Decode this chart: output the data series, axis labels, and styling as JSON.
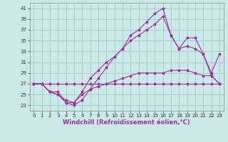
{
  "xlabel": "Windchill (Refroidissement éolien,°C)",
  "xlim": [
    -0.5,
    23.5
  ],
  "ylim": [
    22,
    42
  ],
  "yticks": [
    23,
    25,
    27,
    29,
    31,
    33,
    35,
    37,
    39,
    41
  ],
  "xticks": [
    0,
    1,
    2,
    3,
    4,
    5,
    6,
    7,
    8,
    9,
    10,
    11,
    12,
    13,
    14,
    15,
    16,
    17,
    18,
    19,
    20,
    21,
    22,
    23
  ],
  "bg_color": "#cce9e9",
  "grid_color": "#aacccc",
  "line_color": "#993399",
  "lines": [
    {
      "x": [
        0,
        1,
        2,
        3,
        4,
        5,
        6,
        7,
        8,
        9,
        10,
        11,
        12,
        13,
        14,
        15,
        16,
        17,
        18,
        19,
        20,
        21,
        22,
        23
      ],
      "y": [
        27,
        27,
        27,
        27,
        27,
        27,
        27,
        27,
        27,
        27,
        27,
        27,
        27,
        27,
        27,
        27,
        27,
        27,
        27,
        27,
        27,
        27,
        27,
        27
      ]
    },
    {
      "x": [
        0,
        1,
        2,
        3,
        4,
        5,
        6,
        7,
        8,
        9,
        10,
        11,
        12,
        13,
        14,
        15,
        16,
        17,
        18,
        19,
        20,
        21,
        22,
        23
      ],
      "y": [
        27,
        27,
        25.5,
        25.5,
        23.5,
        23.5,
        25,
        26,
        26.5,
        27,
        27.5,
        28,
        28.5,
        29,
        29,
        29,
        29,
        29.5,
        29.5,
        29.5,
        29,
        28.5,
        28.5,
        27
      ]
    },
    {
      "x": [
        0,
        1,
        2,
        3,
        4,
        5,
        6,
        7,
        8,
        9,
        10,
        11,
        12,
        13,
        14,
        15,
        16,
        17,
        18,
        19,
        20,
        21,
        22,
        23
      ],
      "y": [
        27,
        27,
        25.5,
        25,
        24,
        23.5,
        25.5,
        28,
        29.5,
        31,
        32,
        33.5,
        35,
        36,
        37,
        38,
        39.5,
        36,
        33.5,
        34,
        33.5,
        32.5,
        29,
        32.5
      ]
    },
    {
      "x": [
        0,
        1,
        2,
        3,
        4,
        5,
        6,
        7,
        8,
        9,
        10,
        11,
        12,
        13,
        14,
        15,
        16,
        17,
        18,
        19,
        20,
        21,
        22,
        23
      ],
      "y": [
        27,
        27,
        25.5,
        25,
        23.5,
        23,
        24,
        26,
        28,
        30,
        32,
        33.5,
        36,
        37,
        38.5,
        40,
        41,
        36,
        33.5,
        35.5,
        35.5,
        32.5,
        28.5,
        27
      ]
    }
  ],
  "xlabel_color": "#993399",
  "xlabel_fontsize": 6,
  "tick_fontsize": 5,
  "tick_color": "#333333",
  "spine_color": "#888888"
}
